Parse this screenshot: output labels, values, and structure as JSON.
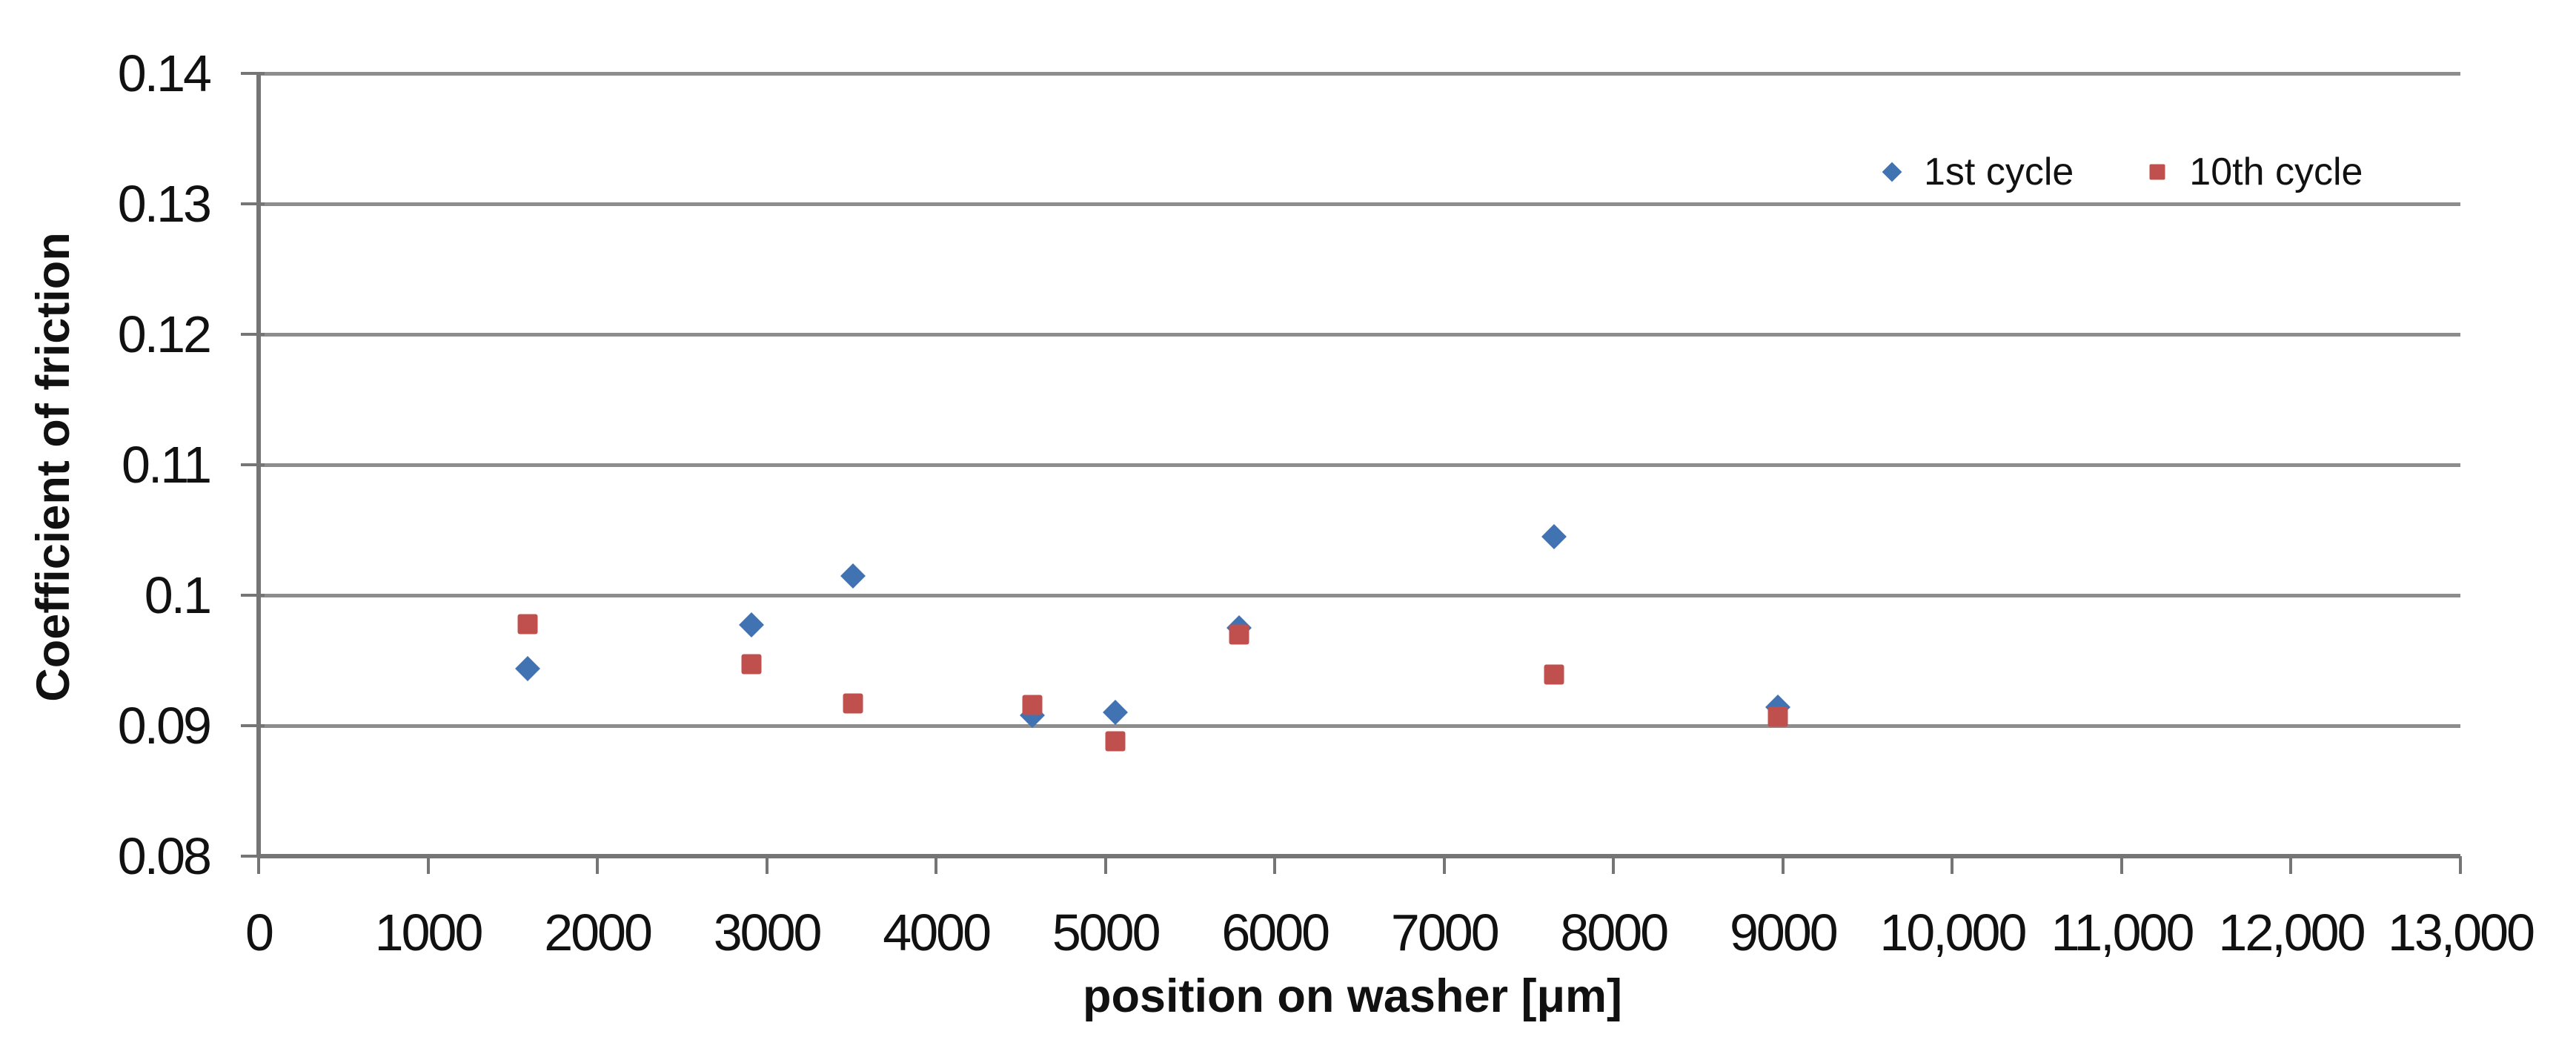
{
  "chart_data": {
    "type": "scatter",
    "title": "",
    "xlabel": "position on washer [μm]",
    "ylabel": "Coefficient of friction",
    "xlim": [
      0,
      13000
    ],
    "ylim": [
      0.08,
      0.14
    ],
    "grid": "horizontal-only",
    "legend_position": "inside-top-right",
    "x_tick_values": [
      0,
      1000,
      2000,
      3000,
      4000,
      5000,
      6000,
      7000,
      8000,
      9000,
      10000,
      11000,
      12000,
      13000
    ],
    "x_tick_labels": [
      "0",
      "1000",
      "2000",
      "3000",
      "4000",
      "5000",
      "6000",
      "7000",
      "8000",
      "9000",
      "10,000",
      "11,000",
      "12,000",
      "13,000"
    ],
    "y_tick_values": [
      0.08,
      0.09,
      0.1,
      0.11,
      0.12,
      0.13,
      0.14
    ],
    "y_tick_labels": [
      "0.08",
      "0.09",
      "0.1",
      "0.11",
      "0.12",
      "0.13",
      "0.14"
    ],
    "colors": {
      "grid": "#8d8d8d",
      "axis": "#757575",
      "text": "#111111",
      "series1": "#4173b3",
      "series2": "#c0504d"
    },
    "series": [
      {
        "name": "1st cycle",
        "marker": "diamond",
        "color_key": "series1",
        "x": [
          1590,
          2910,
          3510,
          4570,
          5060,
          5790,
          7650,
          8970
        ],
        "y": [
          0.0944,
          0.0977,
          0.1015,
          0.0908,
          0.091,
          0.0975,
          0.1045,
          0.0914
        ]
      },
      {
        "name": "10th cycle",
        "marker": "square",
        "color_key": "series2",
        "x": [
          1590,
          2910,
          3510,
          4570,
          5060,
          5790,
          7650,
          8970
        ],
        "y": [
          0.0978,
          0.0947,
          0.0917,
          0.0916,
          0.0888,
          0.097,
          0.0939,
          0.0907
        ]
      }
    ]
  }
}
